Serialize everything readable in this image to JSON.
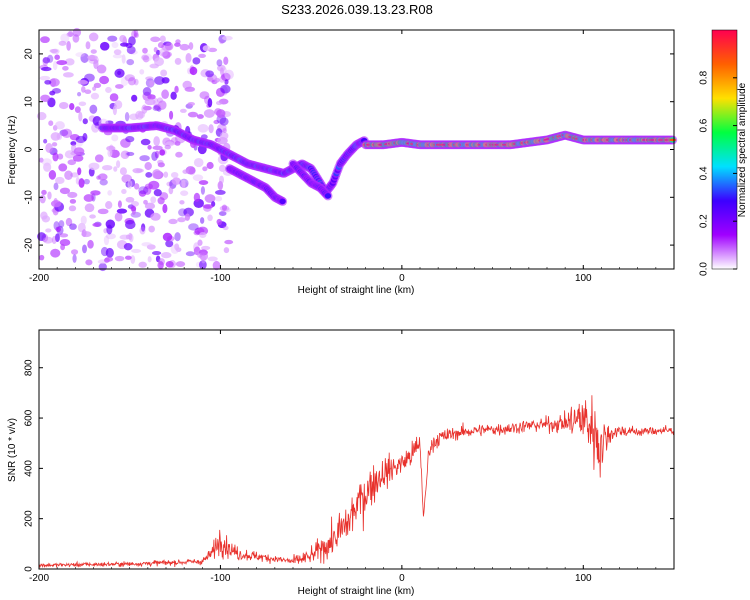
{
  "title": "S233.2026.039.13.23.R08",
  "colors": {
    "snr_line": "#e8312c",
    "axis": "#000000",
    "colormap": [
      "#ffffff",
      "#a000ff",
      "#3c00ff",
      "#00e0ff",
      "#00ff40",
      "#ffe000",
      "#ff6000",
      "#ff0050"
    ]
  },
  "chart_data": [
    {
      "type": "heatmap",
      "name": "spectrogram",
      "xlabel": "Height of straight line (km)",
      "ylabel": "Frequency (Hz)",
      "xlim": [
        -200,
        150
      ],
      "ylim": [
        -25,
        25
      ],
      "xticks": [
        -200,
        -100,
        0,
        100
      ],
      "xticklabels": [
        "-200",
        "-100",
        "0",
        "100"
      ],
      "yticks": [
        -20,
        -10,
        0,
        10,
        20
      ],
      "yticklabels": [
        "-20",
        "-10",
        "0",
        "10",
        "20"
      ],
      "colorbar": {
        "label": "Normalized spectral amplitude",
        "range": [
          0,
          1
        ],
        "ticks": [
          0.0,
          0.2,
          0.4,
          0.6,
          0.8
        ],
        "ticklabels": [
          "0.0",
          "0.2",
          "0.4",
          "0.6",
          "0.8"
        ]
      },
      "ridges": [
        {
          "name": "main-ridge",
          "points": [
            [
              -165,
              4.5
            ],
            [
              -150,
              4.5
            ],
            [
              -135,
              5
            ],
            [
              -125,
              4
            ],
            [
              -115,
              2
            ],
            [
              -105,
              1
            ],
            [
              -95,
              -1
            ],
            [
              -85,
              -3
            ],
            [
              -75,
              -4
            ],
            [
              -65,
              -5
            ],
            [
              -55,
              -3
            ],
            [
              -50,
              -4
            ],
            [
              -45,
              -7
            ],
            [
              -42,
              -9
            ],
            [
              -38,
              -7
            ]
          ],
          "amplitude": 0.35
        },
        {
          "name": "lower-branch",
          "points": [
            [
              -95,
              -4
            ],
            [
              -85,
              -6
            ],
            [
              -80,
              -7
            ],
            [
              -75,
              -8
            ],
            [
              -70,
              -10
            ],
            [
              -65,
              -11
            ]
          ],
          "amplitude": 0.3
        },
        {
          "name": "mid-branch",
          "points": [
            [
              -60,
              -3
            ],
            [
              -55,
              -5
            ],
            [
              -50,
              -7
            ],
            [
              -45,
              -8
            ],
            [
              -40,
              -10
            ]
          ],
          "amplitude": 0.3
        },
        {
          "name": "rising-arm",
          "points": [
            [
              -38,
              -7
            ],
            [
              -34,
              -3
            ],
            [
              -30,
              -1
            ],
            [
              -25,
              1
            ],
            [
              -20,
              2
            ]
          ],
          "amplitude": 0.35
        },
        {
          "name": "right-ridge",
          "points": [
            [
              -20,
              1
            ],
            [
              -10,
              1
            ],
            [
              0,
              1.5
            ],
            [
              10,
              1
            ],
            [
              20,
              1
            ],
            [
              30,
              1
            ],
            [
              40,
              1
            ],
            [
              50,
              1
            ],
            [
              60,
              1
            ],
            [
              70,
              1.5
            ],
            [
              80,
              2
            ],
            [
              90,
              3
            ],
            [
              100,
              2
            ],
            [
              110,
              2
            ],
            [
              120,
              2
            ],
            [
              130,
              2
            ],
            [
              140,
              2
            ],
            [
              150,
              2
            ]
          ],
          "amplitude": 0.75
        }
      ],
      "noise_region": {
        "x": [
          -200,
          -95
        ],
        "y": [
          -25,
          25
        ],
        "amplitude": 0.1
      }
    },
    {
      "type": "line",
      "name": "snr",
      "xlabel": "Height of straight line (km)",
      "ylabel": "SNR (10 * v/v)",
      "xlim": [
        -200,
        150
      ],
      "ylim": [
        0,
        950
      ],
      "xticks": [
        -200,
        -100,
        0,
        100
      ],
      "xticklabels": [
        "-200",
        "-100",
        "0",
        "100"
      ],
      "yticks": [
        0,
        200,
        400,
        600,
        800
      ],
      "yticklabels": [
        "0",
        "200",
        "400",
        "600",
        "800"
      ],
      "series": [
        {
          "name": "SNR",
          "envelope": {
            "x": [
              -200,
              -150,
              -110,
              -105,
              -100,
              -95,
              -90,
              -80,
              -70,
              -60,
              -50,
              -45,
              -40,
              -35,
              -30,
              -25,
              -20,
              -15,
              -10,
              -5,
              0,
              5,
              10,
              12,
              15,
              20,
              30,
              40,
              50,
              60,
              70,
              80,
              90,
              95,
              100,
              105,
              108,
              110,
              112,
              115,
              120,
              130,
              140,
              150
            ],
            "y": [
              15,
              20,
              30,
              60,
              120,
              80,
              60,
              50,
              40,
              30,
              50,
              80,
              100,
              140,
              180,
              250,
              300,
              350,
              380,
              400,
              420,
              450,
              500,
              200,
              480,
              520,
              540,
              550,
              555,
              560,
              570,
              575,
              580,
              590,
              600,
              560,
              520,
              480,
              520,
              540,
              550,
              545,
              550,
              550
            ],
            "spread": [
              12,
              15,
              20,
              40,
              90,
              60,
              40,
              30,
              25,
              30,
              50,
              70,
              90,
              120,
              140,
              150,
              140,
              120,
              100,
              90,
              80,
              80,
              70,
              30,
              60,
              50,
              40,
              40,
              40,
              40,
              40,
              45,
              60,
              120,
              180,
              220,
              250,
              220,
              120,
              60,
              40,
              30,
              30,
              30
            ]
          }
        }
      ]
    }
  ]
}
